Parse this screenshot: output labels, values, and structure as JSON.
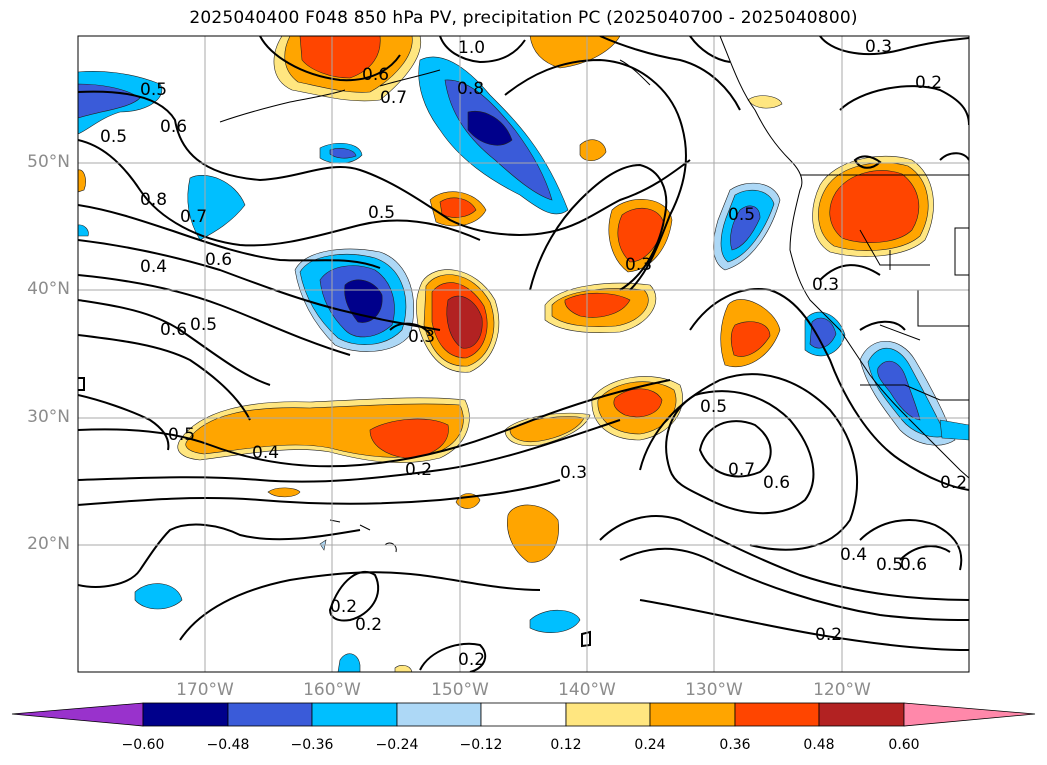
{
  "title": "2025040400 F048 850 hPa PV, precipitation PC (2025040700 - 2025040800)",
  "latitude_labels": [
    "50°N",
    "40°N",
    "30°N",
    "20°N"
  ],
  "longitude_labels": [
    "170°W",
    "160°W",
    "150°W",
    "140°W",
    "130°W",
    "120°W"
  ],
  "contour_labels": [
    "1.0",
    "0.8",
    "0.7",
    "0.6",
    "0.5",
    "0.5",
    "0.8",
    "0.7",
    "0.6",
    "0.5",
    "0.4",
    "0.6",
    "0.3",
    "0.3",
    "0.6",
    "0.5",
    "0.4",
    "0.2",
    "0.5",
    "0.3",
    "0.7",
    "0.6",
    "0.2",
    "0.2",
    "0.2",
    "0.4",
    "0.5",
    "0.6",
    "0.2",
    "0.3",
    "0.2",
    "0.2",
    "0.5",
    "0.3",
    "0.5"
  ],
  "colorbar": {
    "ticks": [
      "−0.60",
      "−0.48",
      "−0.36",
      "−0.24",
      "−0.12",
      "0.12",
      "0.24",
      "0.36",
      "0.48",
      "0.60"
    ],
    "colors": [
      "#9932cc",
      "#00008b",
      "#3a5bd9",
      "#00bfff",
      "#add8f6",
      "#ffffff",
      "#ffe680",
      "#ffa500",
      "#ff4500",
      "#b22222",
      "#ff88aa"
    ]
  }
}
